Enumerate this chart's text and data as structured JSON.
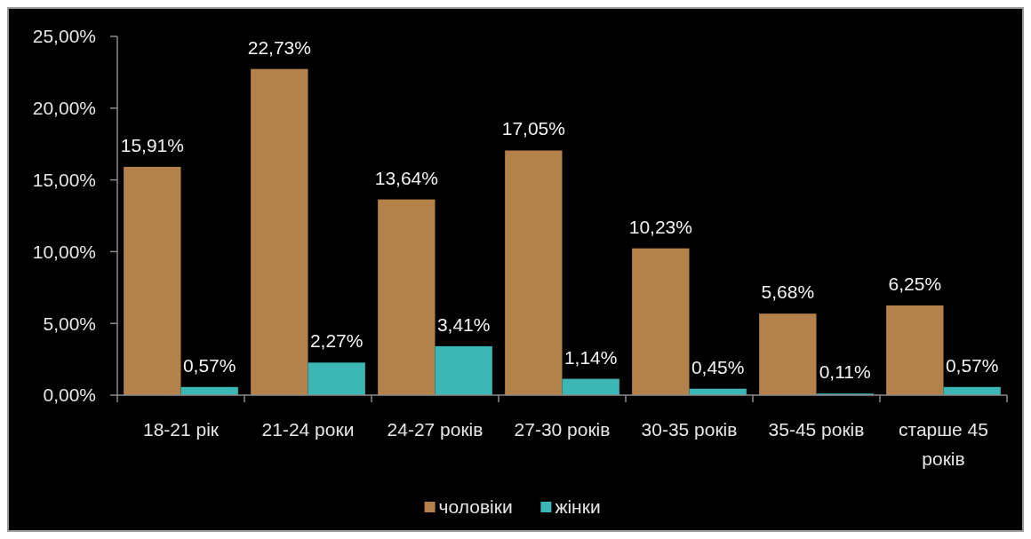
{
  "chart_data": {
    "type": "bar",
    "categories": [
      "18-21 рік",
      "21-24 роки",
      "24-27 років",
      "27-30 років",
      "30-35 років",
      "35-45 років",
      "старше 45 років"
    ],
    "series": [
      {
        "name": "чоловіки",
        "color": "#b5814a",
        "values": [
          15.91,
          22.73,
          13.64,
          17.05,
          10.23,
          5.68,
          6.25
        ],
        "value_labels": [
          "15,91%",
          "22,73%",
          "13,64%",
          "17,05%",
          "10,23%",
          "5,68%",
          "6,25%"
        ]
      },
      {
        "name": "жінки",
        "color": "#3db6b6",
        "values": [
          0.57,
          2.27,
          3.41,
          1.14,
          0.45,
          0.11,
          0.57
        ],
        "value_labels": [
          "0,57%",
          "2,27%",
          "3,41%",
          "1,14%",
          "0,45%",
          "0,11%",
          "0,57%"
        ]
      }
    ],
    "ylim": [
      0,
      25
    ],
    "yticks": [
      {
        "value": 0,
        "label": "0,00%"
      },
      {
        "value": 5,
        "label": "5,00%"
      },
      {
        "value": 10,
        "label": "10,00%"
      },
      {
        "value": 15,
        "label": "15,00%"
      },
      {
        "value": 20,
        "label": "20,00%"
      },
      {
        "value": 25,
        "label": "25,00%"
      }
    ],
    "legend": "bottom"
  }
}
